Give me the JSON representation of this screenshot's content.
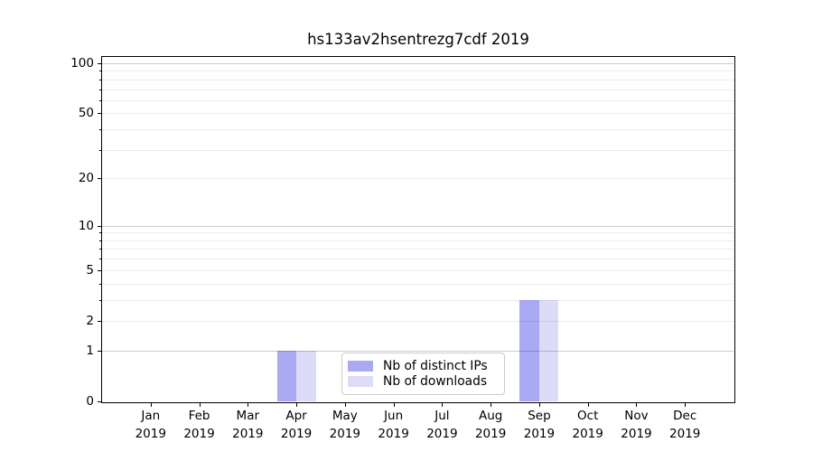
{
  "chart_data": {
    "type": "bar",
    "title": "hs133av2hsentrezg7cdf 2019",
    "x_axis": {
      "months": [
        "Jan",
        "Feb",
        "Mar",
        "Apr",
        "May",
        "Jun",
        "Jul",
        "Aug",
        "Sep",
        "Oct",
        "Nov",
        "Dec"
      ],
      "year": "2019"
    },
    "y_axis": {
      "scale": "log1p",
      "ylim": [
        0,
        111
      ],
      "tick_values": [
        0,
        1,
        2,
        5,
        10,
        20,
        50,
        100
      ],
      "tick_labels": [
        "0",
        "1",
        "2",
        "5",
        "10",
        "20",
        "50",
        "100"
      ],
      "major_gridlines": [
        1,
        10,
        100
      ],
      "minor_gridlines": [
        2,
        3,
        4,
        5,
        6,
        7,
        8,
        9,
        20,
        30,
        40,
        50,
        60,
        70,
        80,
        90
      ]
    },
    "series": [
      {
        "name": "Nb of distinct IPs",
        "color": "#a9a9f4",
        "values": [
          0,
          0,
          0,
          1,
          0,
          0,
          0,
          0,
          3,
          0,
          0,
          0
        ]
      },
      {
        "name": "Nb of downloads",
        "color": "#dcdcf8",
        "values": [
          0,
          0,
          0,
          1,
          0,
          0,
          0,
          0,
          3,
          0,
          0,
          0
        ]
      }
    ],
    "legend": {
      "position": "lower center"
    },
    "grid": {
      "major_color": "#cccccc",
      "minor_color": "#ececec"
    }
  }
}
